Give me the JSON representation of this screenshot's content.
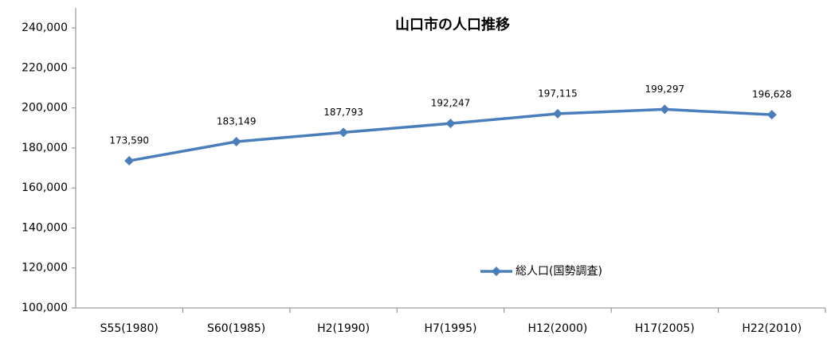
{
  "chart_data": {
    "type": "line",
    "title": "山口市の人口推移",
    "categories": [
      "S55(1980)",
      "S60(1985)",
      "H2(1990)",
      "H7(1995)",
      "H12(2000)",
      "H17(2005)",
      "H22(2010)"
    ],
    "series": [
      {
        "name": "総人口(国勢調査)",
        "color": "#4a7ebb",
        "values": [
          173590,
          183149,
          187793,
          192247,
          197115,
          199297,
          196628
        ],
        "value_labels": [
          "173,590",
          "183,149",
          "187,793",
          "192,247",
          "197,115",
          "199,297",
          "196,628"
        ]
      }
    ],
    "ylim": [
      100000,
      250000
    ],
    "yticks": [
      {
        "value": 100000,
        "label": "100,000"
      },
      {
        "value": 120000,
        "label": "120,000"
      },
      {
        "value": 140000,
        "label": "140,000"
      },
      {
        "value": 160000,
        "label": "160,000"
      },
      {
        "value": 180000,
        "label": "180,000"
      },
      {
        "value": 200000,
        "label": "200,000"
      },
      {
        "value": 220000,
        "label": "220,000"
      },
      {
        "value": 240000,
        "label": "240,000"
      }
    ],
    "grid": false,
    "legend": "center"
  }
}
